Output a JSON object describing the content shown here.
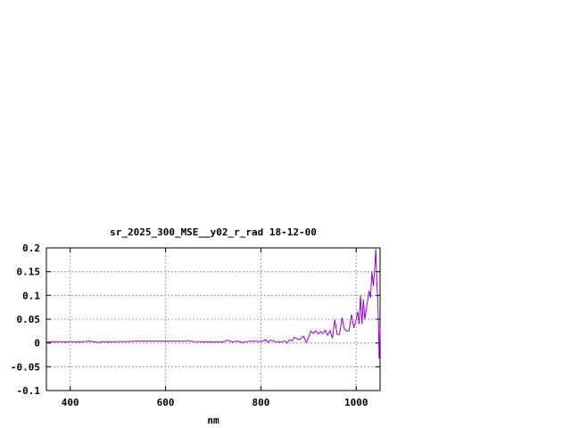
{
  "chart_data": {
    "type": "line",
    "title": "sr_2025_300_MSE__y02_r_rad 18-12-00",
    "xlabel": "nm",
    "ylabel": "",
    "xlim": [
      350,
      1050
    ],
    "ylim": [
      -0.1,
      0.2
    ],
    "xticks": [
      400,
      600,
      800,
      1000
    ],
    "xtick_labels": [
      "400",
      "600",
      "800",
      "1000"
    ],
    "yticks": [
      -0.1,
      -0.05,
      0,
      0.05,
      0.1,
      0.15,
      0.2
    ],
    "ytick_labels": [
      "-0.1",
      "-0.05",
      "0",
      "0.05",
      "0.1",
      "0.15",
      "0.2"
    ],
    "grid": true,
    "series": [
      {
        "color": "#9400d3",
        "x": [
          350,
          360,
          370,
          380,
          390,
          400,
          420,
          440,
          460,
          470,
          480,
          500,
          520,
          540,
          560,
          600,
          640,
          645,
          660,
          700,
          720,
          730,
          740,
          750,
          760,
          780,
          800,
          810,
          815,
          820,
          830,
          840,
          850,
          855,
          860,
          865,
          870,
          880,
          890,
          895,
          900,
          905,
          910,
          915,
          920,
          925,
          930,
          935,
          940,
          945,
          950,
          955,
          960,
          965,
          970,
          975,
          980,
          985,
          990,
          995,
          1000,
          1003,
          1006,
          1009,
          1012,
          1015,
          1018,
          1021,
          1024,
          1027,
          1030,
          1033,
          1036,
          1039,
          1041,
          1043,
          1045,
          1047,
          1048,
          1050
        ],
        "y": [
          0.002,
          0.003,
          0.002,
          0.003,
          0.002,
          0.003,
          0.002,
          0.004,
          0.001,
          0.003,
          0.002,
          0.003,
          0.003,
          0.004,
          0.004,
          0.004,
          0.004,
          0.005,
          0.003,
          0.002,
          0.002,
          0.006,
          0.002,
          0.004,
          0.001,
          0.004,
          0.003,
          0.007,
          0.001,
          0.006,
          0.003,
          0.002,
          0.004,
          0.0,
          0.007,
          0.004,
          0.012,
          0.007,
          0.014,
          0.001,
          0.012,
          0.025,
          0.02,
          0.026,
          0.019,
          0.024,
          0.02,
          0.027,
          0.016,
          0.026,
          0.01,
          0.049,
          0.018,
          0.018,
          0.053,
          0.03,
          0.025,
          0.026,
          0.06,
          0.032,
          0.05,
          0.066,
          0.04,
          0.1,
          0.04,
          0.092,
          0.05,
          0.07,
          0.09,
          0.11,
          0.095,
          0.15,
          0.12,
          0.16,
          0.198,
          0.13,
          0.095,
          0.03,
          -0.033,
          0.03
        ]
      }
    ]
  }
}
